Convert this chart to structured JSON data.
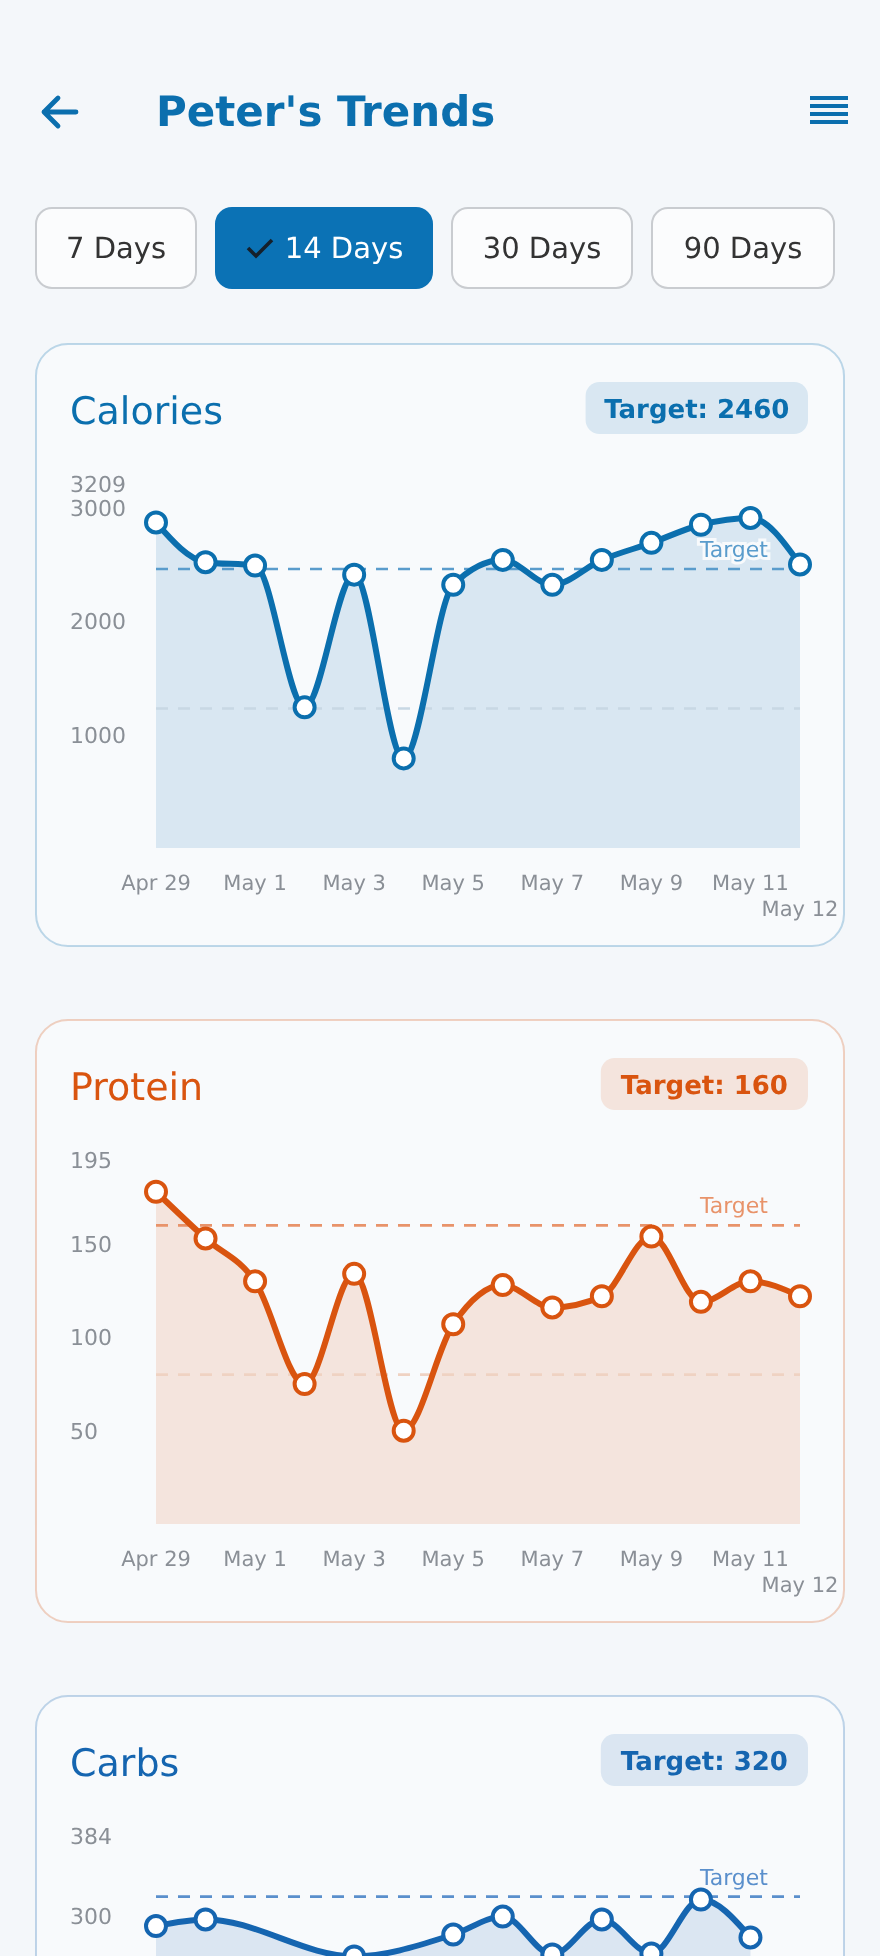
{
  "chart_data": [
    {
      "type": "other",
      "title": "Peter's Trends",
      "annotations": [
        "7 Days",
        "14 Days",
        "30 Days",
        "90 Days"
      ]
    },
    {
      "type": "area",
      "title": "Calories",
      "subtitle": "Target: 2460",
      "color": "#0b6fae",
      "marker": "circle",
      "categories": [
        "Apr 29",
        null,
        "May 1",
        null,
        "May 3",
        null,
        "May 5",
        null,
        "May 7",
        null,
        "May 9",
        null,
        "May 11",
        "May 12"
      ],
      "values": [
        2870,
        2520,
        2490,
        1240,
        2410,
        790,
        2320,
        2540,
        2320,
        2540,
        2690,
        2850,
        2910,
        2500
      ],
      "ylim": [
        0,
        3209
      ],
      "yticks": [
        1000,
        2000,
        3000,
        3209
      ],
      "ref_lines": [
        {
          "axis": "y",
          "value": 2460,
          "label": "Target",
          "color": "#5a9ccc",
          "line_style": "dashed"
        },
        {
          "axis": "y",
          "value": 1230,
          "color": "#c8d8e4",
          "line_style": "dashed"
        }
      ]
    },
    {
      "type": "area",
      "title": "Protein",
      "subtitle": "Target: 160",
      "color": "#d9540f",
      "marker": "circle",
      "categories": [
        "Apr 29",
        null,
        "May 1",
        null,
        "May 3",
        null,
        "May 5",
        null,
        "May 7",
        null,
        "May 9",
        null,
        "May 11",
        "May 12"
      ],
      "values": [
        178,
        153,
        130,
        75,
        134,
        50,
        107,
        128,
        116,
        122,
        154,
        119,
        130,
        122
      ],
      "ylim": [
        0,
        195
      ],
      "yticks": [
        50,
        100,
        150,
        195
      ],
      "ref_lines": [
        {
          "axis": "y",
          "value": 160,
          "label": "Target",
          "color": "#e8936a",
          "line_style": "dashed"
        },
        {
          "axis": "y",
          "value": 80,
          "color": "#efd2c2",
          "line_style": "dashed"
        }
      ]
    },
    {
      "type": "area",
      "title": "Carbs",
      "subtitle": "Target: 320",
      "color": "#1565b0",
      "marker": "circle",
      "categories": [
        null,
        null,
        null,
        null,
        null,
        null,
        null,
        null,
        null,
        null,
        null,
        null,
        null,
        null
      ],
      "values": [
        289,
        296,
        null,
        null,
        257,
        null,
        280,
        299,
        259,
        296,
        260,
        317,
        277,
        null
      ],
      "ylim": [
        0,
        384
      ],
      "yticks": [
        300,
        384
      ],
      "ref_lines": [
        {
          "axis": "y",
          "value": 320,
          "label": "Target",
          "color": "#5a8fcc",
          "line_style": "dashed"
        }
      ]
    }
  ]
}
